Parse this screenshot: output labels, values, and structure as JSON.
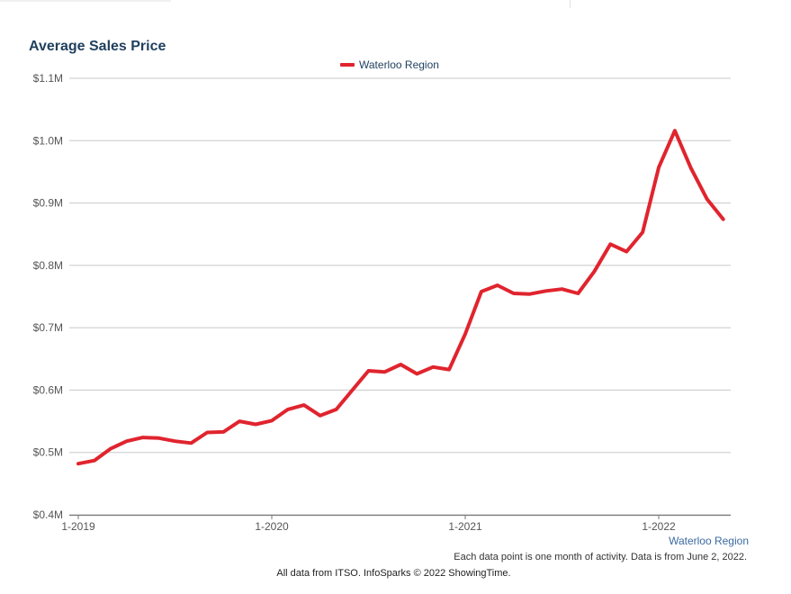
{
  "title": "Average Sales Price",
  "legend_label": "Waterloo Region",
  "region_link": "Waterloo Region",
  "note": "Each data point is one month of activity. Data is from June 2, 2022.",
  "credit": "All data from ITSO. InfoSparks © 2022 ShowingTime.",
  "chart_data": {
    "type": "line",
    "title": "Average Sales Price",
    "ylim": [
      0.4,
      1.1
    ],
    "y_unit": "$M",
    "yticks": [
      1.1,
      1.0,
      0.9,
      0.8,
      0.7,
      0.6,
      0.5,
      0.4
    ],
    "ytick_labels": [
      "$1.1M",
      "$1.0M",
      "$0.9M",
      "$0.8M",
      "$0.7M",
      "$0.6M",
      "$0.5M",
      "$0.4M"
    ],
    "xticks": [
      "1-2019",
      "1-2020",
      "1-2021",
      "1-2022"
    ],
    "grid": true,
    "legend_position": "top-center",
    "series": [
      {
        "name": "Waterloo Region",
        "color": "#e0242e",
        "x": [
          "2019-01",
          "2019-02",
          "2019-03",
          "2019-04",
          "2019-05",
          "2019-06",
          "2019-07",
          "2019-08",
          "2019-09",
          "2019-10",
          "2019-11",
          "2019-12",
          "2020-01",
          "2020-02",
          "2020-03",
          "2020-04",
          "2020-05",
          "2020-06",
          "2020-07",
          "2020-08",
          "2020-09",
          "2020-10",
          "2020-11",
          "2020-12",
          "2021-01",
          "2021-02",
          "2021-03",
          "2021-04",
          "2021-05",
          "2021-06",
          "2021-07",
          "2021-08",
          "2021-09",
          "2021-10",
          "2021-11",
          "2021-12",
          "2022-01",
          "2022-02",
          "2022-03",
          "2022-04",
          "2022-05"
        ],
        "values": [
          0.482,
          0.487,
          0.506,
          0.518,
          0.524,
          0.523,
          0.518,
          0.515,
          0.532,
          0.533,
          0.55,
          0.545,
          0.551,
          0.569,
          0.576,
          0.559,
          0.569,
          0.6,
          0.631,
          0.629,
          0.641,
          0.626,
          0.637,
          0.633,
          0.69,
          0.758,
          0.768,
          0.755,
          0.754,
          0.759,
          0.762,
          0.755,
          0.79,
          0.834,
          0.822,
          0.853,
          0.957,
          1.016,
          0.956,
          0.906,
          0.874
        ]
      }
    ]
  }
}
